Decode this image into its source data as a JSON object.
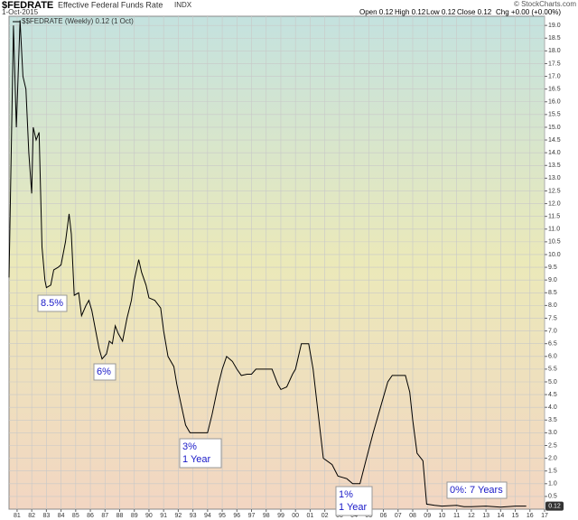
{
  "header": {
    "symbol": "$FEDRATE",
    "name": "Effective Federal Funds Rate",
    "exchange": "INDX",
    "date": "1-Oct-2015",
    "open": "Open 0.12",
    "high": "High 0.12",
    "low": "Low 0.12",
    "close": "Close 0.12",
    "change": "Chg +0.00 (+0.00%)",
    "credit": "© StockCharts.com"
  },
  "chart_data": {
    "type": "line",
    "legend": "$$FEDRATE (Weekly) 0.12 (1 Oct)",
    "last_label": "0.12",
    "color": "#000000",
    "grid": true,
    "x": [
      1980.45,
      1980.75,
      1980.95,
      1981.2,
      1981.4,
      1981.6,
      1981.8,
      1982.0,
      1982.1,
      1982.3,
      1982.5,
      1982.7,
      1982.9,
      1983.0,
      1983.3,
      1983.5,
      1983.8,
      1984.0,
      1984.3,
      1984.55,
      1984.7,
      1984.9,
      1985.2,
      1985.4,
      1985.7,
      1985.9,
      1986.1,
      1986.4,
      1986.6,
      1986.8,
      1987.1,
      1987.3,
      1987.5,
      1987.7,
      1987.9,
      1988.2,
      1988.5,
      1988.8,
      1989.0,
      1989.3,
      1989.5,
      1989.8,
      1990.0,
      1990.4,
      1990.8,
      1991.0,
      1991.3,
      1991.7,
      1991.9,
      1992.2,
      1992.5,
      1992.8,
      1993.2,
      1993.6,
      1994.0,
      1994.3,
      1994.7,
      1995.0,
      1995.3,
      1995.7,
      1996.0,
      1996.3,
      1996.7,
      1997.0,
      1997.3,
      1997.8,
      1998.4,
      1998.8,
      1999.0,
      1999.4,
      1999.8,
      2000.0,
      2000.4,
      2000.9,
      2001.2,
      2001.5,
      2001.9,
      2002.5,
      2002.9,
      2003.5,
      2003.9,
      2004.4,
      2004.8,
      2005.3,
      2005.8,
      2006.3,
      2006.6,
      2007.5,
      2007.8,
      2008.0,
      2008.3,
      2008.7,
      2008.95,
      2009.5,
      2010.0,
      2011.0,
      2011.5,
      2012.0,
      2013.0,
      2014.0,
      2015.0,
      2015.75
    ],
    "values": [
      9.1,
      19.0,
      15.0,
      19.2,
      17.0,
      16.5,
      14.0,
      12.4,
      15.0,
      14.5,
      14.8,
      10.3,
      9.0,
      8.7,
      8.8,
      9.4,
      9.5,
      9.6,
      10.5,
      11.6,
      10.8,
      8.4,
      8.5,
      7.6,
      8.0,
      8.2,
      7.8,
      6.9,
      6.3,
      5.9,
      6.1,
      6.6,
      6.5,
      7.2,
      6.9,
      6.6,
      7.5,
      8.2,
      9.0,
      9.8,
      9.3,
      8.8,
      8.3,
      8.2,
      7.9,
      7.0,
      6.0,
      5.6,
      4.9,
      4.1,
      3.3,
      3.0,
      3.0,
      3.0,
      3.0,
      3.7,
      4.8,
      5.5,
      6.0,
      5.8,
      5.5,
      5.25,
      5.3,
      5.3,
      5.5,
      5.5,
      5.5,
      4.9,
      4.7,
      4.8,
      5.3,
      5.5,
      6.5,
      6.5,
      5.5,
      4.0,
      2.0,
      1.75,
      1.3,
      1.2,
      1.0,
      1.0,
      1.9,
      3.0,
      4.0,
      5.0,
      5.25,
      5.25,
      4.6,
      3.5,
      2.2,
      1.9,
      0.2,
      0.15,
      0.12,
      0.15,
      0.1,
      0.1,
      0.12,
      0.08,
      0.12,
      0.12
    ],
    "xlim": [
      1980.45,
      2017.0
    ],
    "ylim": [
      0,
      19.36
    ],
    "xticks": [
      {
        "value": 1981,
        "label": "81"
      },
      {
        "value": 1982,
        "label": "82"
      },
      {
        "value": 1983,
        "label": "83"
      },
      {
        "value": 1984,
        "label": "84"
      },
      {
        "value": 1985,
        "label": "85"
      },
      {
        "value": 1986,
        "label": "86"
      },
      {
        "value": 1987,
        "label": "87"
      },
      {
        "value": 1988,
        "label": "88"
      },
      {
        "value": 1989,
        "label": "89"
      },
      {
        "value": 1990,
        "label": "90"
      },
      {
        "value": 1991,
        "label": "91"
      },
      {
        "value": 1992,
        "label": "92"
      },
      {
        "value": 1993,
        "label": "93"
      },
      {
        "value": 1994,
        "label": "94"
      },
      {
        "value": 1995,
        "label": "95"
      },
      {
        "value": 1996,
        "label": "96"
      },
      {
        "value": 1997,
        "label": "97"
      },
      {
        "value": 1998,
        "label": "98"
      },
      {
        "value": 1999,
        "label": "99"
      },
      {
        "value": 2000,
        "label": "00"
      },
      {
        "value": 2001,
        "label": "01"
      },
      {
        "value": 2002,
        "label": "02"
      },
      {
        "value": 2003,
        "label": "03"
      },
      {
        "value": 2004,
        "label": "04"
      },
      {
        "value": 2005,
        "label": "05"
      },
      {
        "value": 2006,
        "label": "06"
      },
      {
        "value": 2007,
        "label": "07"
      },
      {
        "value": 2008,
        "label": "08"
      },
      {
        "value": 2009,
        "label": "09"
      },
      {
        "value": 2010,
        "label": "10"
      },
      {
        "value": 2011,
        "label": "11"
      },
      {
        "value": 2012,
        "label": "12"
      },
      {
        "value": 2013,
        "label": "13"
      },
      {
        "value": 2014,
        "label": "14"
      },
      {
        "value": 2015,
        "label": "15"
      },
      {
        "value": 2016,
        "label": "16"
      },
      {
        "value": 2017,
        "label": "17"
      }
    ],
    "yticks": [
      0.5,
      {
        "value": 1,
        "label": "1.0"
      },
      1.5,
      {
        "value": 2,
        "label": "2.0"
      },
      2.5,
      {
        "value": 3,
        "label": "3.0"
      },
      3.5,
      {
        "value": 4,
        "label": "4.0"
      },
      4.5,
      {
        "value": 5,
        "label": "5.0"
      },
      5.5,
      {
        "value": 6,
        "label": "6.0"
      },
      6.5,
      {
        "value": 7,
        "label": "7.0"
      },
      7.5,
      {
        "value": 8,
        "label": "8.0"
      },
      8.5,
      {
        "value": 9,
        "label": "9.0"
      },
      9.5,
      {
        "value": 10,
        "label": "10.0"
      },
      10.5,
      {
        "value": 11,
        "label": "11.0"
      },
      11.5,
      {
        "value": 12,
        "label": "12.0"
      },
      12.5,
      {
        "value": 13,
        "label": "13.0"
      },
      13.5,
      {
        "value": 14,
        "label": "14.0"
      },
      14.5,
      {
        "value": 15,
        "label": "15.0"
      },
      15.5,
      {
        "value": 16,
        "label": "16.0"
      },
      16.5,
      {
        "value": 17,
        "label": "17.0"
      },
      17.5,
      {
        "value": 18,
        "label": "18.0"
      },
      18.5,
      {
        "value": 19,
        "label": "19.0"
      }
    ],
    "annotations": [
      {
        "lines": [
          "8.5%"
        ]
      },
      {
        "lines": [
          "6%"
        ]
      },
      {
        "lines": [
          "3%",
          "1 Year"
        ]
      },
      {
        "lines": [
          "1%",
          "1 Year"
        ]
      },
      {
        "lines": [
          "0%: 7 Years"
        ]
      }
    ]
  }
}
